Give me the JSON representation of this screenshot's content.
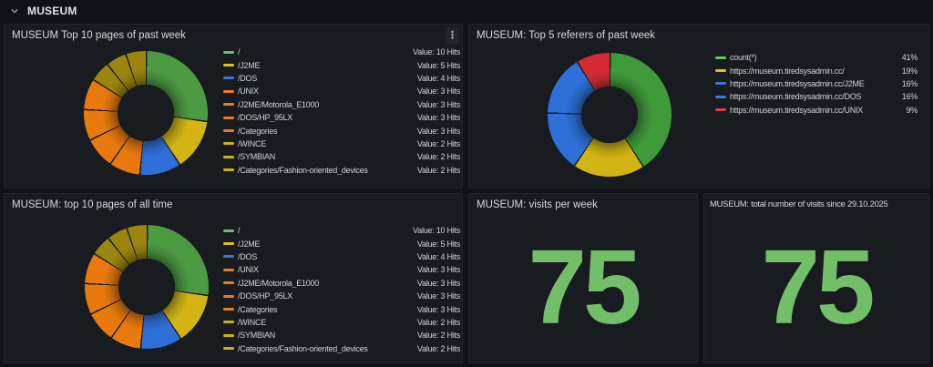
{
  "colors": {
    "page_bg": "#111217",
    "panel_bg": "#181B1F",
    "panel_border": "#24262C",
    "title_text": "#D8D9DA",
    "legend_text": "#D2D3DC",
    "stat_green": "#73BF69"
  },
  "icons": {
    "row_collapse": "chevron-down-icon",
    "panel_menu": "kebab-menu-icon"
  },
  "row_header": {
    "title": "MUSEUM"
  },
  "panels": {
    "top_pages_week": {
      "title": "MUSEUM Top 10 pages of past week",
      "chart_data": {
        "type": "pie",
        "donut": true,
        "unit": "Hits",
        "legend_position": "right",
        "categories": [
          "/",
          "/J2ME",
          "/DOS",
          "/UNIX",
          "/J2ME/Motorola_E1000",
          "/DOS/HP_95LX",
          "/Categories",
          "/WINCE",
          "/SYMBIAN",
          "/Categories/Fashion-oriented_devices"
        ],
        "values": [
          10,
          5,
          4,
          3,
          3,
          3,
          3,
          2,
          2,
          2
        ],
        "legend_value_texts": [
          "Value: 10 Hits",
          "Value: 5 Hits",
          "Value: 4 Hits",
          "Value: 3 Hits",
          "Value: 3 Hits",
          "Value: 3 Hits",
          "Value: 3 Hits",
          "Value: 2 Hits",
          "Value: 2 Hits",
          "Value: 2 Hits"
        ],
        "slice_colors": [
          "#4C9B43",
          "#D2B413",
          "#2C70D8",
          "#E8790C",
          "#E8790C",
          "#E8790C",
          "#E8790C",
          "#9C850F",
          "#9C850F",
          "#9C850F"
        ],
        "legend_colors": [
          "#73BF69",
          "#E0C01A",
          "#3B77D9",
          "#F07C16",
          "#F07C16",
          "#F07C16",
          "#F07C16",
          "#D0B216",
          "#D0B216",
          "#D0B216"
        ]
      }
    },
    "top_referers_week": {
      "title": "MUSEUM: Top 5 referers of past week",
      "chart_data": {
        "type": "pie",
        "donut": true,
        "unit": "%",
        "legend_position": "right",
        "categories": [
          "count(*)",
          "https://museum.tiredsysadmin.cc/",
          "https://museum.tiredsysadmin.cc/J2ME",
          "https://museum.tiredsysadmin.cc/DOS",
          "https://museum.tiredsysadmin.cc/UNIX"
        ],
        "values": [
          41,
          19,
          16,
          16,
          9
        ],
        "legend_value_texts": [
          "41%",
          "19%",
          "16%",
          "16%",
          "9%"
        ],
        "slice_colors": [
          "#3F9A39",
          "#D2B413",
          "#2C70D8",
          "#2C70D8",
          "#D42A34"
        ],
        "legend_colors": [
          "#73BF69",
          "#E0C01A",
          "#3B77D9",
          "#3B77D9",
          "#E8364A"
        ]
      }
    },
    "top_pages_all_time": {
      "title": "MUSEUM: top 10 pages of all time",
      "chart_data": {
        "type": "pie",
        "donut": true,
        "unit": "Hits",
        "legend_position": "right",
        "categories": [
          "/",
          "/J2ME",
          "/DOS",
          "/UNIX",
          "/J2ME/Motorola_E1000",
          "/DOS/HP_95LX",
          "/Categories",
          "/WINCE",
          "/SYMBIAN",
          "/Categories/Fashion-oriented_devices"
        ],
        "values": [
          10,
          5,
          4,
          3,
          3,
          3,
          3,
          2,
          2,
          2
        ],
        "legend_value_texts": [
          "Value: 10 Hits",
          "Value: 5 Hits",
          "Value: 4 Hits",
          "Value: 3 Hits",
          "Value: 3 Hits",
          "Value: 3 Hits",
          "Value: 3 Hits",
          "Value: 2 Hits",
          "Value: 2 Hits",
          "Value: 2 Hits"
        ],
        "slice_colors": [
          "#4C9B43",
          "#D2B413",
          "#2C70D8",
          "#E8790C",
          "#E8790C",
          "#E8790C",
          "#E8790C",
          "#9C850F",
          "#9C850F",
          "#9C850F"
        ],
        "legend_colors": [
          "#73BF69",
          "#E0C01A",
          "#3B77D9",
          "#F07C16",
          "#F07C16",
          "#F07C16",
          "#F07C16",
          "#D0B216",
          "#D0B216",
          "#D0B216"
        ]
      }
    },
    "visits_per_week": {
      "title": "MUSEUM: visits per week",
      "value_text": "75",
      "chart_data": {
        "type": "stat",
        "value": 75
      }
    },
    "total_visits": {
      "title": "MUSEUM: total number of visits since 29.10.2025",
      "value_text": "75",
      "chart_data": {
        "type": "stat",
        "value": 75
      }
    }
  }
}
